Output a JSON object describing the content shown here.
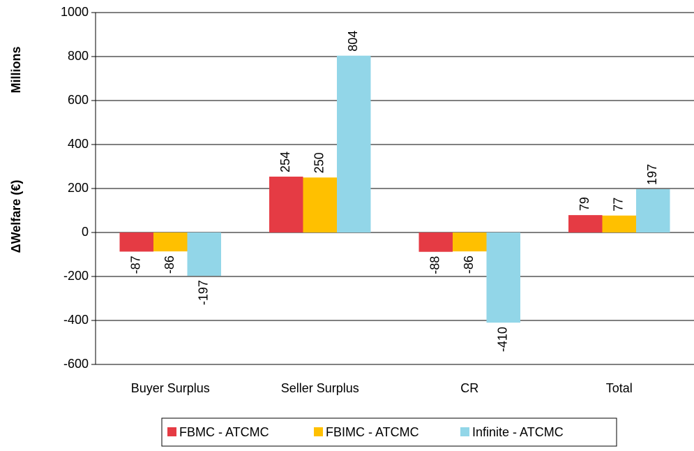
{
  "chart_data": {
    "type": "bar",
    "ylabel": "ΔWelfare (€)",
    "yunit_label": "Millions",
    "categories": [
      "Buyer Surplus",
      "Seller Surplus",
      "CR",
      "Total"
    ],
    "series": [
      {
        "name": "FBMC - ATCMC",
        "color": "#e53b44",
        "values": [
          -87,
          254,
          -88,
          79
        ]
      },
      {
        "name": "FBIMC - ATCMC",
        "color": "#ffc000",
        "values": [
          -86,
          250,
          -86,
          77
        ]
      },
      {
        "name": "Infinite - ATCMC",
        "color": "#92d6e8",
        "values": [
          -197,
          804,
          -410,
          197
        ]
      }
    ],
    "ylim": [
      -600,
      1000
    ],
    "yticks": [
      -600,
      -400,
      -200,
      0,
      200,
      400,
      600,
      800,
      1000
    ],
    "grid": true
  }
}
